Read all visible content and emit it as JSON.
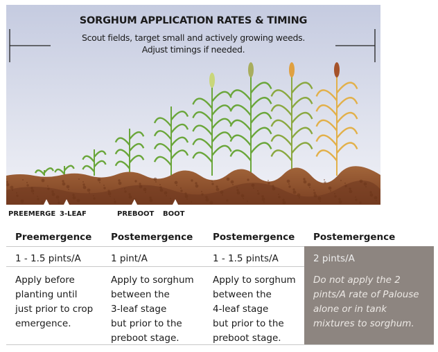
{
  "header": {
    "title": "SORGHUM APPLICATION RATES & TIMING",
    "subtitle_line1": "Scout fields, target small and actively growing weeds.",
    "subtitle_line2": "Adjust timings if needed."
  },
  "stages": [
    "PREEMERGE",
    "3-LEAF",
    "PREBOOT",
    "BOOT"
  ],
  "colors": {
    "sky_top": "#c5cbe0",
    "sky_bottom": "#eef0f6",
    "soil": "#9a5a32",
    "leaf": "#6aa63a",
    "note_bg": "#8d8580"
  },
  "table": {
    "columns": [
      {
        "header": "Preemergence",
        "rate": "1 - 1.5 pints/A",
        "description": "Apply before\nplanting until\njust prior to crop\nemergence."
      },
      {
        "header": "Postemergence",
        "rate": "1 pint/A",
        "description": "Apply to sorghum\nbetween the\n3-leaf stage\nbut prior to the\npreboot stage."
      },
      {
        "header": "Postemergence",
        "rate": "1 - 1.5 pints/A",
        "description": "Apply to sorghum\nbetween the\n4-leaf stage\nbut prior to the\npreboot stage."
      },
      {
        "header": "Postemergence",
        "rate": "2 pints/A",
        "description": "Do not apply the 2\npints/A rate of Palouse\nalone or in tank\nmixtures to sorghum."
      }
    ]
  }
}
